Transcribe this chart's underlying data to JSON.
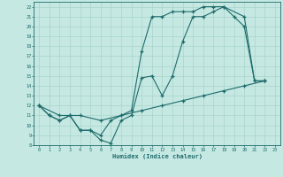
{
  "xlabel": "Humidex (Indice chaleur)",
  "bg_color": "#c5e8e2",
  "grid_color": "#a8d4cc",
  "line_color": "#1e6b6b",
  "xlim": [
    -0.5,
    23.5
  ],
  "ylim": [
    8,
    22.5
  ],
  "xticks": [
    0,
    1,
    2,
    3,
    4,
    5,
    6,
    7,
    8,
    9,
    10,
    11,
    12,
    13,
    14,
    15,
    16,
    17,
    18,
    19,
    20,
    21,
    22,
    23
  ],
  "yticks": [
    8,
    9,
    10,
    11,
    12,
    13,
    14,
    15,
    16,
    17,
    18,
    19,
    20,
    21,
    22
  ],
  "line1_x": [
    0,
    1,
    2,
    3,
    4,
    5,
    6,
    7,
    8,
    9,
    10,
    11,
    12,
    13,
    14,
    15,
    16,
    17,
    18,
    20,
    21,
    22
  ],
  "line1_y": [
    12,
    11,
    10.5,
    11,
    9.5,
    9.5,
    8.5,
    8.2,
    10.5,
    11,
    14.8,
    15,
    13,
    15,
    18.5,
    21,
    21,
    21.5,
    22,
    21,
    14.5,
    14.5
  ],
  "line2_x": [
    0,
    1,
    2,
    3,
    4,
    5,
    6,
    7,
    8,
    9,
    10,
    11,
    12,
    13,
    14,
    15,
    16,
    17,
    18,
    19,
    20,
    21,
    22
  ],
  "line2_y": [
    12,
    11,
    10.5,
    11,
    9.5,
    9.5,
    9,
    10.5,
    11,
    11.5,
    17.5,
    21,
    21,
    21.5,
    21.5,
    21.5,
    22,
    22,
    22,
    21,
    20,
    14.5,
    14.5
  ],
  "line3_x": [
    0,
    2,
    4,
    6,
    8,
    10,
    12,
    14,
    16,
    18,
    20,
    22
  ],
  "line3_y": [
    12,
    11,
    11,
    10.5,
    11,
    11.5,
    12,
    12.5,
    13,
    13.5,
    14,
    14.5
  ]
}
